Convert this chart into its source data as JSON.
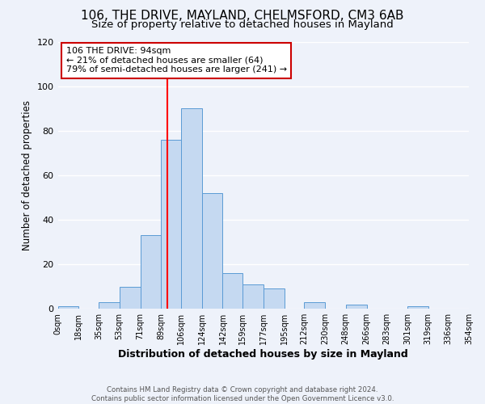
{
  "title": "106, THE DRIVE, MAYLAND, CHELMSFORD, CM3 6AB",
  "subtitle": "Size of property relative to detached houses in Mayland",
  "xlabel": "Distribution of detached houses by size in Mayland",
  "ylabel": "Number of detached properties",
  "bin_edges": [
    0,
    18,
    35,
    53,
    71,
    89,
    106,
    124,
    142,
    159,
    177,
    195,
    212,
    230,
    248,
    266,
    283,
    301,
    319,
    336,
    354
  ],
  "bar_heights": [
    1,
    0,
    3,
    10,
    33,
    76,
    90,
    52,
    16,
    11,
    9,
    0,
    3,
    0,
    2,
    0,
    0,
    1,
    0,
    0
  ],
  "bar_color": "#c5d9f1",
  "bar_edgecolor": "#5b9bd5",
  "ylim": [
    0,
    120
  ],
  "red_line_x": 94,
  "annotation_title": "106 THE DRIVE: 94sqm",
  "annotation_line1": "← 21% of detached houses are smaller (64)",
  "annotation_line2": "79% of semi-detached houses are larger (241) →",
  "annotation_box_color": "#ffffff",
  "annotation_box_edgecolor": "#cc0000",
  "footer_line1": "Contains HM Land Registry data © Crown copyright and database right 2024.",
  "footer_line2": "Contains public sector information licensed under the Open Government Licence v3.0.",
  "bg_color": "#eef2fa",
  "grid_color": "#ffffff",
  "title_fontsize": 11,
  "subtitle_fontsize": 9.5,
  "xlabel_fontsize": 9,
  "ylabel_fontsize": 8.5,
  "tick_labels": [
    "0sqm",
    "18sqm",
    "35sqm",
    "53sqm",
    "71sqm",
    "89sqm",
    "106sqm",
    "124sqm",
    "142sqm",
    "159sqm",
    "177sqm",
    "195sqm",
    "212sqm",
    "230sqm",
    "248sqm",
    "266sqm",
    "283sqm",
    "301sqm",
    "319sqm",
    "336sqm",
    "354sqm"
  ]
}
